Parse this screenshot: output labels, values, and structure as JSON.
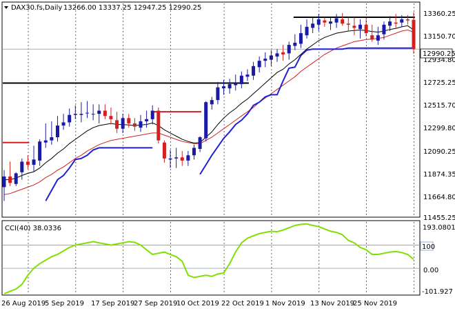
{
  "header": {
    "symbol_label": "DAX30.fs,Daily",
    "ohlc": "13266.00 13337.25 12947.25 12990.25"
  },
  "price_axis": {
    "labels": [
      "13360.25",
      "13150.70",
      "12934.80",
      "12725.25",
      "12515.70",
      "12299.80",
      "12090.25",
      "11874.35",
      "11664.80",
      "11455.25"
    ],
    "current_price_label": "12990.25"
  },
  "cci_panel": {
    "label": "CCI(40) 38.0336",
    "axis_labels": [
      "193.0801",
      "100",
      "0.00",
      "-101.927"
    ]
  },
  "x_axis": {
    "labels": [
      "26 Aug 2019",
      "5 Sep 2019",
      "17 Sep 2019",
      "27 Sep 2019",
      "10 Oct 2019",
      "22 Oct 2019",
      "1 Nov 2019",
      "13 Nov 2019",
      "25 Nov 2019"
    ]
  },
  "colors": {
    "bull_candle": "#1a1aa6",
    "bear_candle": "#d21f1f",
    "ema_fast": "#000000",
    "ema_slow": "#d21f1f",
    "trail_stop": "#1f1fd6",
    "cci_line": "#7fe000",
    "hline_black": "#000000",
    "hline_red": "#d21f1f"
  },
  "chart_data": [
    {
      "type": "candlestick",
      "title": "DAX30.fs,Daily",
      "x": [
        "26 Aug 2019",
        "27 Aug 2019",
        "28 Aug 2019",
        "29 Aug 2019",
        "30 Aug 2019",
        "2 Sep 2019",
        "3 Sep 2019",
        "4 Sep 2019",
        "5 Sep 2019",
        "6 Sep 2019",
        "9 Sep 2019",
        "10 Sep 2019",
        "11 Sep 2019",
        "12 Sep 2019",
        "13 Sep 2019",
        "16 Sep 2019",
        "17 Sep 2019",
        "18 Sep 2019",
        "19 Sep 2019",
        "20 Sep 2019",
        "23 Sep 2019",
        "24 Sep 2019",
        "25 Sep 2019",
        "26 Sep 2019",
        "27 Sep 2019",
        "30 Sep 2019",
        "1 Oct 2019",
        "2 Oct 2019",
        "3 Oct 2019",
        "4 Oct 2019",
        "7 Oct 2019",
        "8 Oct 2019",
        "9 Oct 2019",
        "10 Oct 2019",
        "11 Oct 2019",
        "14 Oct 2019",
        "15 Oct 2019",
        "16 Oct 2019",
        "17 Oct 2019",
        "18 Oct 2019",
        "21 Oct 2019",
        "22 Oct 2019",
        "23 Oct 2019",
        "24 Oct 2019",
        "25 Oct 2019",
        "28 Oct 2019",
        "29 Oct 2019",
        "30 Oct 2019",
        "31 Oct 2019",
        "1 Nov 2019",
        "4 Nov 2019",
        "5 Nov 2019",
        "6 Nov 2019",
        "7 Nov 2019",
        "8 Nov 2019",
        "11 Nov 2019",
        "12 Nov 2019",
        "13 Nov 2019",
        "14 Nov 2019",
        "15 Nov 2019",
        "18 Nov 2019",
        "19 Nov 2019",
        "20 Nov 2019",
        "21 Nov 2019",
        "22 Nov 2019",
        "25 Nov 2019",
        "26 Nov 2019",
        "27 Nov 2019",
        "28 Nov 2019",
        "29 Nov 2019"
      ],
      "open": [
        11690,
        11790,
        11720,
        11830,
        11930,
        11900,
        11940,
        12110,
        12130,
        12160,
        12270,
        12300,
        12370,
        12370,
        12390,
        12380,
        12380,
        12410,
        12360,
        12320,
        12240,
        12340,
        12290,
        12250,
        12310,
        12330,
        12410,
        12110,
        11950,
        11960,
        11970,
        11940,
        11990,
        12050,
        12150,
        12470,
        12510,
        12620,
        12620,
        12650,
        12660,
        12730,
        12740,
        12820,
        12880,
        12890,
        12920,
        12960,
        12950,
        13020,
        13040,
        13120,
        13190,
        13220,
        13260,
        13230,
        13240,
        13270,
        13230,
        13210,
        13180,
        13220,
        13120,
        13070,
        13130,
        13210,
        13240,
        13240,
        13270,
        13266
      ],
      "high": [
        11850,
        11930,
        11830,
        11960,
        11990,
        12080,
        12140,
        12290,
        12310,
        12360,
        12380,
        12430,
        12460,
        12490,
        12500,
        12470,
        12470,
        12470,
        12440,
        12400,
        12380,
        12380,
        12340,
        12370,
        12410,
        12460,
        12440,
        12130,
        12040,
        12060,
        12030,
        12030,
        12090,
        12170,
        12500,
        12540,
        12680,
        12700,
        12710,
        12750,
        12780,
        12800,
        12870,
        12920,
        12960,
        12980,
        12990,
        13030,
        13060,
        13130,
        13220,
        13270,
        13290,
        13320,
        13290,
        13290,
        13320,
        13330,
        13290,
        13290,
        13270,
        13280,
        13220,
        13200,
        13250,
        13300,
        13320,
        13310,
        13310,
        13337
      ],
      "low": [
        11560,
        11700,
        11700,
        11760,
        11860,
        11840,
        11890,
        12060,
        12090,
        12120,
        12230,
        12260,
        12330,
        12300,
        12340,
        12320,
        12290,
        12330,
        12280,
        12200,
        12200,
        12250,
        12220,
        12210,
        12250,
        12280,
        12100,
        11920,
        11870,
        11870,
        11890,
        11890,
        11950,
        12020,
        12120,
        12420,
        12470,
        12560,
        12570,
        12600,
        12620,
        12690,
        12700,
        12770,
        12820,
        12830,
        12870,
        12880,
        12890,
        12980,
        13000,
        13090,
        13140,
        13160,
        13200,
        13170,
        13190,
        13210,
        13160,
        13120,
        13090,
        13110,
        13060,
        13030,
        13080,
        13160,
        13190,
        13200,
        13220,
        12947
      ],
      "close": [
        11790,
        11730,
        11820,
        11930,
        11900,
        11950,
        12120,
        12130,
        12160,
        12270,
        12300,
        12370,
        12380,
        12380,
        12390,
        12380,
        12410,
        12360,
        12330,
        12240,
        12340,
        12290,
        12260,
        12310,
        12330,
        12410,
        12130,
        11960,
        11960,
        11970,
        11940,
        11990,
        12060,
        12160,
        12490,
        12510,
        12630,
        12640,
        12660,
        12670,
        12740,
        12750,
        12830,
        12880,
        12900,
        12930,
        12950,
        12940,
        13030,
        13050,
        13140,
        13200,
        13230,
        13270,
        13240,
        13250,
        13280,
        13230,
        13220,
        13190,
        13220,
        13140,
        13080,
        13120,
        13220,
        13250,
        13230,
        13270,
        13260,
        12990
      ],
      "ema_fast": [
        11760,
        11760,
        11775,
        11800,
        11820,
        11835,
        11870,
        11920,
        11960,
        12010,
        12050,
        12100,
        12140,
        12180,
        12220,
        12250,
        12270,
        12280,
        12290,
        12280,
        12280,
        12275,
        12270,
        12275,
        12280,
        12295,
        12270,
        12230,
        12200,
        12170,
        12140,
        12120,
        12105,
        12110,
        12160,
        12210,
        12280,
        12340,
        12390,
        12430,
        12480,
        12520,
        12570,
        12620,
        12670,
        12720,
        12770,
        12800,
        12850,
        12890,
        12940,
        12990,
        13030,
        13070,
        13100,
        13120,
        13140,
        13150,
        13160,
        13165,
        13170,
        13165,
        13155,
        13150,
        13160,
        13175,
        13185,
        13200,
        13210,
        13170
      ],
      "ema_slow": [
        11620,
        11630,
        11650,
        11670,
        11690,
        11710,
        11740,
        11780,
        11810,
        11850,
        11880,
        11920,
        11960,
        11990,
        12030,
        12060,
        12090,
        12110,
        12130,
        12140,
        12150,
        12160,
        12170,
        12180,
        12190,
        12200,
        12200,
        12180,
        12160,
        12140,
        12120,
        12110,
        12100,
        12100,
        12130,
        12160,
        12200,
        12240,
        12280,
        12320,
        12360,
        12400,
        12440,
        12490,
        12530,
        12570,
        12610,
        12650,
        12690,
        12730,
        12780,
        12820,
        12860,
        12900,
        12940,
        12970,
        13000,
        13020,
        13040,
        13060,
        13070,
        13080,
        13085,
        13090,
        13100,
        13120,
        13140,
        13160,
        13170,
        13150
      ],
      "trail_stop": [
        null,
        null,
        null,
        null,
        null,
        null,
        null,
        11560,
        11660,
        11760,
        11800,
        11870,
        11950,
        11960,
        11990,
        12040,
        12060,
        12060,
        12060,
        12060,
        12060,
        12060,
        12060,
        12060,
        12060,
        12060,
        null,
        null,
        null,
        null,
        null,
        null,
        null,
        11810,
        11900,
        11990,
        12070,
        12150,
        12210,
        12280,
        12320,
        12380,
        12460,
        12490,
        12540,
        12560,
        12560,
        12690,
        12810,
        12820,
        12930,
        12980,
        12990,
        12990,
        12990,
        12990,
        12990,
        12990,
        13000,
        13000,
        13000,
        13000,
        13000,
        13000,
        13000,
        13000,
        13000,
        13000,
        13000,
        13000
      ],
      "hlines": [
        {
          "color": "hline_red",
          "y": 12110,
          "x_from": "26 Aug 2019",
          "x_to": "30 Aug 2019"
        },
        {
          "color": "hline_black",
          "y": 12670,
          "x_from": "26 Aug 2019",
          "x_to": "22 Oct 2019"
        },
        {
          "color": "hline_red",
          "y": 12400,
          "x_from": "30 Sep 2019",
          "x_to": "10 Oct 2019"
        },
        {
          "color": "hline_black",
          "y": 13290,
          "x_from": "1 Nov 2019",
          "x_to": "29 Nov 2019"
        }
      ],
      "ylim": [
        11420,
        13420
      ]
    },
    {
      "type": "line",
      "title": "CCI(40) 38.0336",
      "x_ref": "same as candlestick",
      "values": [
        -110,
        -100,
        -90,
        -70,
        -30,
        0,
        20,
        35,
        50,
        60,
        75,
        90,
        100,
        105,
        110,
        115,
        110,
        105,
        100,
        105,
        110,
        115,
        112,
        100,
        80,
        60,
        65,
        70,
        60,
        50,
        30,
        -30,
        -40,
        -35,
        -30,
        -35,
        -25,
        -20,
        20,
        70,
        110,
        130,
        140,
        150,
        155,
        160,
        158,
        165,
        175,
        185,
        190,
        192,
        185,
        180,
        170,
        160,
        155,
        145,
        120,
        110,
        90,
        80,
        60,
        60,
        65,
        70,
        72,
        68,
        60,
        38
      ],
      "reference_lines": [
        100,
        0
      ],
      "ylim": [
        -110,
        200
      ]
    }
  ]
}
